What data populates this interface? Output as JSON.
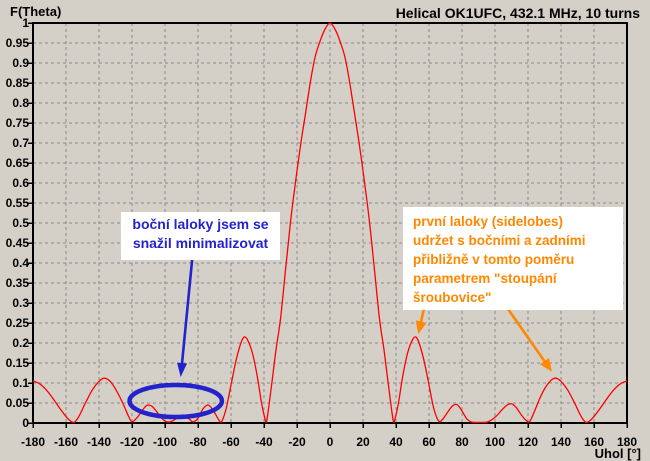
{
  "title": "Helical OK1UFC, 432.1 MHz, 10 turns",
  "y_axis_label": "F(Theta)",
  "x_axis_label": "Uhol [°]",
  "colors": {
    "background": "#d4d0c8",
    "grid": "#8a8a8a",
    "axis": "#000000",
    "curve": "#ff0000",
    "blue": "#2323cc",
    "orange": "#ff8800",
    "note_background": "#ffffff"
  },
  "annotations": {
    "blue_note": {
      "lines": [
        "boční laloky jsem se",
        "snažil minimalizovat"
      ],
      "color": "#2323cc"
    },
    "orange_note": {
      "lines": [
        "první laloky (sidelobes)",
        "udržet s bočními a zadními",
        "přibližně v tomto poměru",
        "parametrem \"stoupání",
        "šroubovice\""
      ],
      "color": "#ff8800"
    },
    "blue_ellipse": {
      "center_angle": -93.5,
      "center_value": 0.055,
      "radius_angle": 28,
      "radius_value": 0.04
    },
    "blue_arrow": {
      "from_angle": -83.5,
      "from_value": 0.41,
      "to_angle": -90.5,
      "to_value": 0.115
    },
    "orange_arrows": [
      {
        "from_angle": 57,
        "from_value": 0.287,
        "to_angle": 53.5,
        "to_value": 0.222
      },
      {
        "from_angle": 107,
        "from_value": 0.29,
        "to_angle": 134.5,
        "to_value": 0.128
      }
    ]
  },
  "chart_data": {
    "type": "line",
    "title": "Helical OK1UFC, 432.1 MHz, 10 turns",
    "xlabel": "Uhol [°]",
    "ylabel": "F(Theta)",
    "xlim": [
      -180,
      180
    ],
    "ylim": [
      0,
      1
    ],
    "grid": true,
    "x_ticks": [
      -180,
      -160,
      -140,
      -120,
      -100,
      -80,
      -60,
      -40,
      -20,
      0,
      20,
      40,
      60,
      80,
      100,
      120,
      140,
      160,
      180
    ],
    "y_ticks": [
      1,
      0.95,
      0.9,
      0.85,
      0.8,
      0.75,
      0.7,
      0.65,
      0.6,
      0.55,
      0.5,
      0.45,
      0.4,
      0.35,
      0.3,
      0.25,
      0.2,
      0.15,
      0.1,
      0.05,
      0
    ],
    "series": [
      {
        "name": "F(Theta)",
        "color": "#ff0000",
        "points": [
          [
            -180,
            0.105
          ],
          [
            -176,
            0.098
          ],
          [
            -172,
            0.083
          ],
          [
            -168,
            0.062
          ],
          [
            -164,
            0.038
          ],
          [
            -160,
            0.016
          ],
          [
            -157,
            0.004
          ],
          [
            -155,
            0.001
          ],
          [
            -152,
            0.018
          ],
          [
            -148,
            0.052
          ],
          [
            -144,
            0.083
          ],
          [
            -140,
            0.104
          ],
          [
            -137,
            0.112
          ],
          [
            -134,
            0.107
          ],
          [
            -131,
            0.092
          ],
          [
            -128,
            0.07
          ],
          [
            -125,
            0.044
          ],
          [
            -122,
            0.016
          ],
          [
            -120,
            0.003
          ],
          [
            -117,
            0.013
          ],
          [
            -114,
            0.03
          ],
          [
            -111,
            0.044
          ],
          [
            -108,
            0.042
          ],
          [
            -105,
            0.028
          ],
          [
            -102,
            0.012
          ],
          [
            -99,
            0.003
          ],
          [
            -96,
            0.004
          ],
          [
            -92,
            0.014
          ],
          [
            -89,
            0.02
          ],
          [
            -86,
            0.012
          ],
          [
            -83,
            0.003
          ],
          [
            -80,
            0.012
          ],
          [
            -77,
            0.035
          ],
          [
            -74,
            0.045
          ],
          [
            -71,
            0.033
          ],
          [
            -68,
            0.012
          ],
          [
            -66,
            0.002
          ],
          [
            -63,
            0.035
          ],
          [
            -60,
            0.095
          ],
          [
            -57,
            0.155
          ],
          [
            -54,
            0.2
          ],
          [
            -52,
            0.215
          ],
          [
            -50,
            0.208
          ],
          [
            -47,
            0.175
          ],
          [
            -44,
            0.115
          ],
          [
            -41.5,
            0.05
          ],
          [
            -39.5,
            0.012
          ],
          [
            -38.5,
            0.002
          ],
          [
            -36.5,
            0.06
          ],
          [
            -34.5,
            0.125
          ],
          [
            -32.5,
            0.19
          ],
          [
            -30,
            0.26
          ],
          [
            -27,
            0.38
          ],
          [
            -24,
            0.5
          ],
          [
            -21,
            0.6
          ],
          [
            -18,
            0.69
          ],
          [
            -15,
            0.77
          ],
          [
            -12,
            0.85
          ],
          [
            -9,
            0.915
          ],
          [
            -6,
            0.955
          ],
          [
            -3,
            0.985
          ],
          [
            0,
            1.0
          ],
          [
            3,
            0.985
          ],
          [
            6,
            0.955
          ],
          [
            9,
            0.915
          ],
          [
            12,
            0.85
          ],
          [
            15,
            0.77
          ],
          [
            18,
            0.69
          ],
          [
            21,
            0.6
          ],
          [
            24,
            0.5
          ],
          [
            27,
            0.38
          ],
          [
            30,
            0.26
          ],
          [
            32.5,
            0.19
          ],
          [
            34.5,
            0.125
          ],
          [
            36.5,
            0.06
          ],
          [
            38.5,
            0.002
          ],
          [
            39.5,
            0.012
          ],
          [
            41.5,
            0.05
          ],
          [
            44,
            0.115
          ],
          [
            47,
            0.175
          ],
          [
            50,
            0.208
          ],
          [
            52,
            0.215
          ],
          [
            54,
            0.2
          ],
          [
            57,
            0.155
          ],
          [
            60,
            0.095
          ],
          [
            63,
            0.035
          ],
          [
            66,
            0.004
          ],
          [
            68,
            0.008
          ],
          [
            71,
            0.025
          ],
          [
            74,
            0.042
          ],
          [
            77,
            0.046
          ],
          [
            80,
            0.03
          ],
          [
            83,
            0.01
          ],
          [
            86,
            0.002
          ],
          [
            89,
            0.001
          ],
          [
            92,
            0.001
          ],
          [
            95,
            0.002
          ],
          [
            98,
            0.008
          ],
          [
            101,
            0.018
          ],
          [
            104,
            0.032
          ],
          [
            107,
            0.044
          ],
          [
            110,
            0.048
          ],
          [
            113,
            0.038
          ],
          [
            116,
            0.02
          ],
          [
            119,
            0.006
          ],
          [
            121,
            0.003
          ],
          [
            124,
            0.03
          ],
          [
            127,
            0.06
          ],
          [
            130,
            0.085
          ],
          [
            134,
            0.107
          ],
          [
            137,
            0.112
          ],
          [
            140,
            0.104
          ],
          [
            144,
            0.083
          ],
          [
            148,
            0.052
          ],
          [
            152,
            0.018
          ],
          [
            155,
            0.001
          ],
          [
            157,
            0.004
          ],
          [
            160,
            0.016
          ],
          [
            164,
            0.038
          ],
          [
            168,
            0.062
          ],
          [
            172,
            0.083
          ],
          [
            176,
            0.098
          ],
          [
            180,
            0.105
          ]
        ]
      }
    ]
  }
}
